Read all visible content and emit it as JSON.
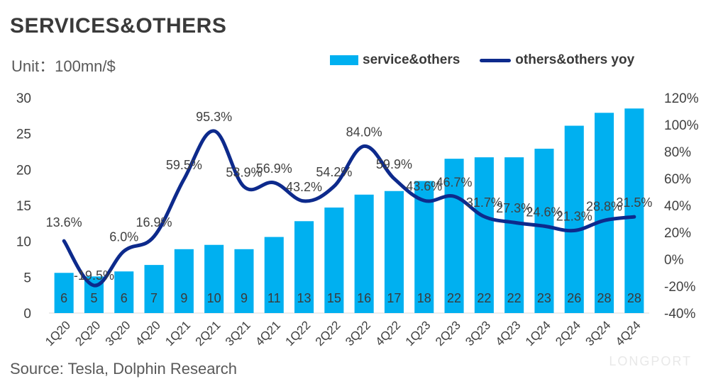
{
  "header": {
    "title": "SERVICES&OTHERS",
    "unit": "Unit：100mn/$"
  },
  "footer": {
    "source": "Source: Tesla, Dolphin Research",
    "brand": "LONGPORT"
  },
  "colors": {
    "bar": "#00b0f0",
    "line": "#0d2a8c",
    "text": "#404040"
  },
  "chart_data": {
    "type": "bar",
    "categories": [
      "1Q20",
      "2Q20",
      "3Q20",
      "4Q20",
      "1Q21",
      "2Q21",
      "3Q21",
      "4Q21",
      "1Q22",
      "2Q22",
      "3Q22",
      "4Q22",
      "1Q23",
      "2Q23",
      "3Q23",
      "4Q23",
      "1Q24",
      "2Q24",
      "3Q24",
      "4Q24"
    ],
    "series": [
      {
        "name": "service&others",
        "type": "bar",
        "axis": "left",
        "values": [
          5.6,
          5.1,
          5.8,
          6.7,
          8.9,
          9.5,
          8.9,
          10.6,
          12.8,
          14.7,
          16.5,
          17.0,
          18.4,
          21.5,
          21.7,
          21.7,
          22.9,
          26.1,
          27.9,
          28.5
        ],
        "labels": [
          "6",
          "5",
          "6",
          "7",
          "9",
          "10",
          "9",
          "11",
          "13",
          "15",
          "16",
          "17",
          "18",
          "22",
          "22",
          "22",
          "23",
          "26",
          "28",
          "28"
        ]
      },
      {
        "name": "others&others yoy",
        "type": "line",
        "axis": "right",
        "values": [
          13.6,
          -19.5,
          6.0,
          16.9,
          59.5,
          95.3,
          53.9,
          56.9,
          43.2,
          54.2,
          84.0,
          59.9,
          43.6,
          46.7,
          31.7,
          27.3,
          24.6,
          21.3,
          28.8,
          31.5
        ],
        "labels": [
          "13.6%",
          "-19.5%",
          "6.0%",
          "16.9%",
          "59.5%",
          "95.3%",
          "53.9%",
          "56.9%",
          "43.2%",
          "54.2%",
          "84.0%",
          "59.9%",
          "43.6%",
          "46.7%",
          "31.7%",
          "27.3%",
          "24.6%",
          "21.3%",
          "28.8%",
          "31.5%"
        ]
      }
    ],
    "y_left": {
      "ylim": [
        0,
        30
      ],
      "ticks": [
        "0",
        "5",
        "10",
        "15",
        "20",
        "25",
        "30"
      ]
    },
    "y_right": {
      "ylim": [
        -40,
        120
      ],
      "ticks": [
        "-40%",
        "-20%",
        "0%",
        "20%",
        "40%",
        "60%",
        "80%",
        "100%",
        "120%"
      ]
    },
    "legend": "top-right",
    "grid": false
  }
}
